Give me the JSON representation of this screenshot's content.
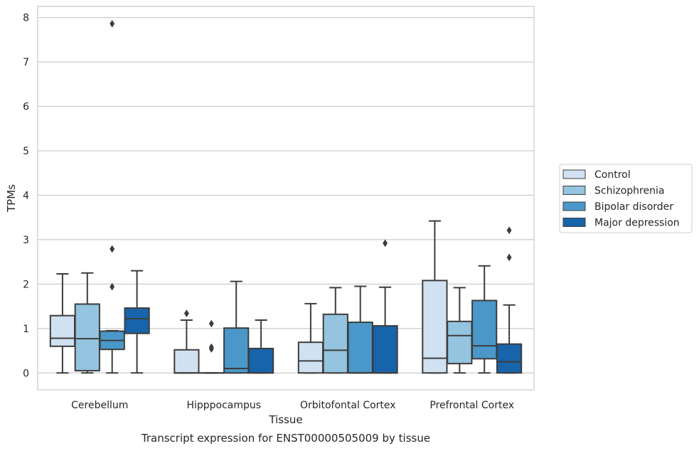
{
  "chart_data": {
    "type": "box",
    "caption": "Transcript expression for ENST00000505009 by tissue",
    "xlabel": "Tissue",
    "ylabel": "TPMs",
    "ylim": [
      -0.38,
      8.25
    ],
    "yticks": [
      0,
      1,
      2,
      3,
      4,
      5,
      6,
      7,
      8
    ],
    "grid": true,
    "legend_placement": "center-right outside",
    "categories": [
      "Cerebellum",
      "Hipppocampus",
      "Orbitofontal Cortex",
      "Prefrontal Cortex"
    ],
    "series": [
      {
        "name": "Control",
        "color": "#d0e1f2",
        "boxes": [
          {
            "whislo": 0.0,
            "q1": 0.6,
            "med": 0.78,
            "q3": 1.29,
            "whishi": 2.23,
            "fliers": []
          },
          {
            "whislo": 0.0,
            "q1": 0.0,
            "med": 0.0,
            "q3": 0.52,
            "whishi": 1.19,
            "fliers": [
              1.34
            ]
          },
          {
            "whislo": 0.0,
            "q1": 0.0,
            "med": 0.27,
            "q3": 0.69,
            "whishi": 1.56,
            "fliers": []
          },
          {
            "whislo": 0.0,
            "q1": 0.0,
            "med": 0.33,
            "q3": 2.08,
            "whishi": 3.42,
            "fliers": []
          }
        ]
      },
      {
        "name": "Schizophrenia",
        "color": "#94c4df",
        "boxes": [
          {
            "whislo": 0.0,
            "q1": 0.05,
            "med": 0.77,
            "q3": 1.55,
            "whishi": 2.25,
            "fliers": []
          },
          {
            "whislo": 0.0,
            "q1": 0.0,
            "med": 0.0,
            "q3": 0.0,
            "whishi": 0.0,
            "fliers": [
              0.54,
              0.58,
              1.11
            ]
          },
          {
            "whislo": 0.0,
            "q1": 0.0,
            "med": 0.51,
            "q3": 1.32,
            "whishi": 1.92,
            "fliers": []
          },
          {
            "whislo": 0.0,
            "q1": 0.21,
            "med": 0.84,
            "q3": 1.16,
            "whishi": 1.92,
            "fliers": []
          }
        ]
      },
      {
        "name": "Bipolar disorder",
        "color": "#4a98c9",
        "boxes": [
          {
            "whislo": 0.0,
            "q1": 0.53,
            "med": 0.73,
            "q3": 0.94,
            "whishi": 0.95,
            "fliers": [
              1.94,
              2.79,
              7.86
            ]
          },
          {
            "whislo": 0.0,
            "q1": 0.0,
            "med": 0.1,
            "q3": 1.01,
            "whishi": 2.06,
            "fliers": []
          },
          {
            "whislo": 0.0,
            "q1": 0.0,
            "med": 0.0,
            "q3": 1.14,
            "whishi": 1.95,
            "fliers": []
          },
          {
            "whislo": 0.0,
            "q1": 0.32,
            "med": 0.61,
            "q3": 1.63,
            "whishi": 2.41,
            "fliers": []
          }
        ]
      },
      {
        "name": "Major depression",
        "color": "#1764ab",
        "boxes": [
          {
            "whislo": 0.0,
            "q1": 0.89,
            "med": 1.22,
            "q3": 1.46,
            "whishi": 2.3,
            "fliers": []
          },
          {
            "whislo": 0.0,
            "q1": 0.0,
            "med": 0.0,
            "q3": 0.55,
            "whishi": 1.19,
            "fliers": []
          },
          {
            "whislo": 0.0,
            "q1": 0.0,
            "med": 0.0,
            "q3": 1.06,
            "whishi": 1.93,
            "fliers": [
              2.92
            ]
          },
          {
            "whislo": 0.0,
            "q1": 0.0,
            "med": 0.25,
            "q3": 0.65,
            "whishi": 1.53,
            "fliers": [
              2.6,
              3.21
            ]
          }
        ]
      }
    ]
  }
}
